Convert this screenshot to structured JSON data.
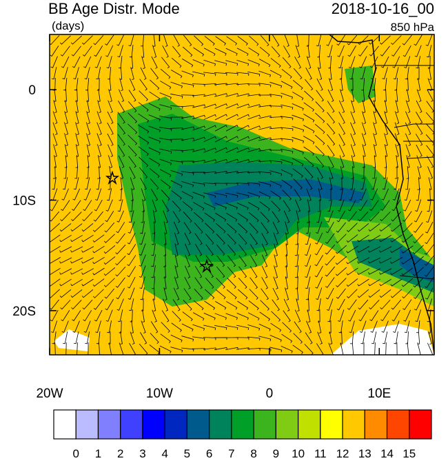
{
  "map": {
    "title": "BB Age Distr. Mode",
    "units": "(days)",
    "date": "2018-10-16_00",
    "level": "850 hPa",
    "xlim": [
      -20,
      15
    ],
    "ylim": [
      -24,
      5
    ],
    "xticks": [
      {
        "value": -20,
        "label": "20W"
      },
      {
        "value": -10,
        "label": "10W"
      },
      0,
      {
        "value": 10,
        "label": "10E"
      }
    ],
    "yticks": [
      0,
      {
        "value": -10,
        "label": "10S"
      },
      {
        "value": -20,
        "label": "20S"
      }
    ],
    "colorbar": {
      "levels": [
        0,
        1,
        2,
        3,
        4,
        5,
        6,
        7,
        8,
        9,
        10,
        11,
        12,
        13,
        14,
        15
      ],
      "colors": [
        "#ffffff",
        "#bbbbff",
        "#8080ff",
        "#4040ff",
        "#0000ff",
        "#0028c0",
        "#005a8c",
        "#00825a",
        "#00a028",
        "#3cb41e",
        "#80cc14",
        "#c0e000",
        "#ffff00",
        "#ffc800",
        "#ff8c00",
        "#ff4600",
        "#ff0000"
      ]
    }
  }
}
